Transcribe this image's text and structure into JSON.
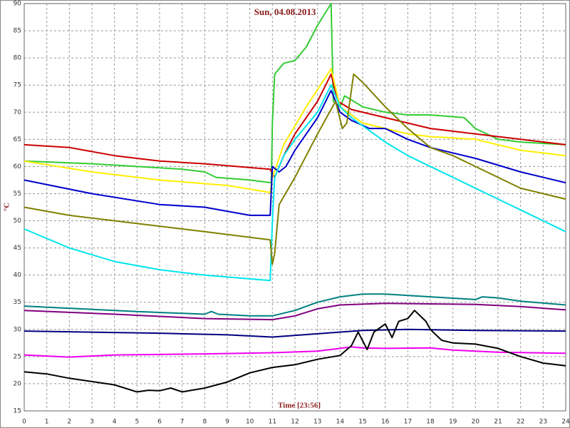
{
  "chart_data": {
    "type": "line",
    "title": "Sun, 04.08.2013",
    "y_label": "°C",
    "x_label": "Time [23:56]",
    "xlim": [
      0,
      24
    ],
    "xticks": [
      0,
      1,
      2,
      3,
      4,
      5,
      6,
      7,
      8,
      9,
      10,
      11,
      12,
      13,
      14,
      15,
      16,
      17,
      18,
      19,
      20,
      21,
      22,
      23,
      24
    ],
    "ylim": [
      15,
      90
    ],
    "yticks": [
      15,
      20,
      25,
      30,
      35,
      40,
      45,
      50,
      55,
      60,
      65,
      70,
      75,
      80,
      85,
      90
    ],
    "grid": true,
    "series": [
      {
        "color": "#33cc33",
        "x": [
          0,
          3,
          5,
          7,
          8,
          8.5,
          10,
          10.95,
          11.0,
          11.1,
          11.5,
          12,
          12.5,
          13,
          13.6,
          13.7,
          14,
          14.2,
          15,
          16,
          17,
          18,
          19.5,
          20,
          21,
          22,
          24
        ],
        "values": [
          61,
          60.5,
          60,
          59.5,
          59,
          58,
          57.5,
          57,
          68,
          77,
          79,
          79.5,
          82,
          86,
          90,
          72,
          71,
          73,
          71,
          70,
          69.5,
          69.5,
          69,
          67,
          65,
          64.5,
          64
        ]
      },
      {
        "color": "#cc0000",
        "x": [
          0,
          2,
          4,
          6,
          8,
          10.9,
          11.1,
          11.5,
          12,
          13,
          13.6,
          13.9,
          14.5,
          16,
          18,
          20,
          22,
          24
        ],
        "values": [
          64,
          63.5,
          62,
          61,
          60.5,
          59.5,
          58,
          62,
          66,
          72,
          77,
          72,
          70.5,
          69,
          67,
          66,
          65,
          64
        ]
      },
      {
        "color": "#ffee00",
        "x": [
          0,
          3,
          6,
          9,
          10.9,
          11,
          11.5,
          12.5,
          13.6,
          14,
          15,
          16,
          17,
          18,
          20,
          22,
          24
        ],
        "values": [
          61,
          59,
          57.5,
          56.5,
          55.2,
          58,
          64,
          71,
          78,
          71,
          68,
          67,
          66,
          65.5,
          65,
          63,
          62
        ]
      },
      {
        "color": "#0000cc",
        "x": [
          0,
          3,
          6,
          8,
          10,
          10.9,
          11,
          11.3,
          11.6,
          12,
          13,
          13.6,
          14,
          14.5,
          15.3,
          16,
          17,
          18,
          20,
          22,
          24
        ],
        "values": [
          57.5,
          55,
          53,
          52.5,
          51,
          51,
          60,
          59,
          60,
          63,
          69,
          74,
          70,
          68.5,
          67,
          67,
          65,
          63.5,
          61.5,
          59,
          57
        ]
      },
      {
        "color": "#00e5ee",
        "x": [
          0,
          2,
          4,
          6,
          8,
          10.9,
          11.0,
          11.1,
          11.5,
          12,
          13,
          13.6,
          14,
          14.5,
          15,
          16,
          17,
          19,
          21,
          22,
          24
        ],
        "values": [
          48.5,
          45,
          42.5,
          41,
          40,
          39,
          50,
          58,
          62,
          65,
          70,
          75,
          71,
          69,
          67.5,
          64.5,
          62,
          58,
          54,
          52,
          48
        ]
      },
      {
        "color": "#808000",
        "x": [
          0,
          2,
          4,
          6,
          8,
          10.9,
          11.0,
          11.1,
          11.3,
          12,
          13,
          13.8,
          14.1,
          14.3,
          14.6,
          15,
          16,
          17,
          18,
          19,
          20,
          21,
          22,
          24
        ],
        "values": [
          52.5,
          51,
          50,
          49,
          48,
          46.5,
          42,
          44,
          53,
          58,
          66,
          72,
          67,
          68,
          77,
          75.5,
          71,
          67,
          63.5,
          62,
          60,
          58,
          56,
          54
        ]
      },
      {
        "color": "#008080",
        "x": [
          0,
          5,
          8,
          8.3,
          8.6,
          10,
          11,
          12,
          13,
          14,
          15,
          16,
          18,
          20,
          20.3,
          21,
          22,
          24
        ],
        "values": [
          34.3,
          33.3,
          32.8,
          33.3,
          32.8,
          32.5,
          32.5,
          33.5,
          35,
          36,
          36.5,
          36.5,
          36,
          35.5,
          36,
          35.8,
          35.2,
          34.5
        ]
      },
      {
        "color": "#800080",
        "x": [
          0,
          4,
          8,
          11,
          12,
          13,
          14,
          16,
          18,
          20,
          22,
          24
        ],
        "values": [
          33.5,
          32.8,
          32,
          31.8,
          32.5,
          33.8,
          34.5,
          34.8,
          34.7,
          34.6,
          34.2,
          33.6
        ]
      },
      {
        "color": "#000080",
        "x": [
          0,
          6,
          9,
          11,
          13,
          15,
          17,
          20,
          24
        ],
        "values": [
          29.7,
          29.3,
          29,
          28.6,
          29.2,
          29.8,
          30,
          29.8,
          29.7
        ]
      },
      {
        "color": "#ee00ee",
        "x": [
          0,
          2,
          4,
          8,
          11,
          13,
          14,
          14.5,
          15,
          16,
          18,
          19,
          21,
          24
        ],
        "values": [
          25.3,
          24.9,
          25.3,
          25.5,
          25.7,
          26,
          26.5,
          26.8,
          26.6,
          26.5,
          26.6,
          26.2,
          25.8,
          25.6
        ]
      },
      {
        "color": "#000000",
        "x": [
          0,
          1,
          2,
          3,
          4,
          5,
          5.5,
          6,
          6.5,
          7,
          8,
          9,
          10,
          11,
          12,
          13,
          14,
          14.5,
          14.8,
          15.2,
          15.5,
          16,
          16.3,
          16.6,
          17,
          17.3,
          17.8,
          18,
          18.5,
          19,
          20,
          21,
          22,
          23,
          24
        ],
        "values": [
          22.2,
          21.8,
          21,
          20.4,
          19.8,
          18.5,
          18.8,
          18.7,
          19.2,
          18.5,
          19.2,
          20.3,
          22,
          23,
          23.5,
          24.5,
          25.2,
          27,
          29.5,
          26.3,
          29.5,
          31,
          28.5,
          31.5,
          32,
          33.5,
          31.5,
          30,
          28,
          27.5,
          27.3,
          26.5,
          25,
          23.8,
          23.3
        ]
      }
    ]
  }
}
